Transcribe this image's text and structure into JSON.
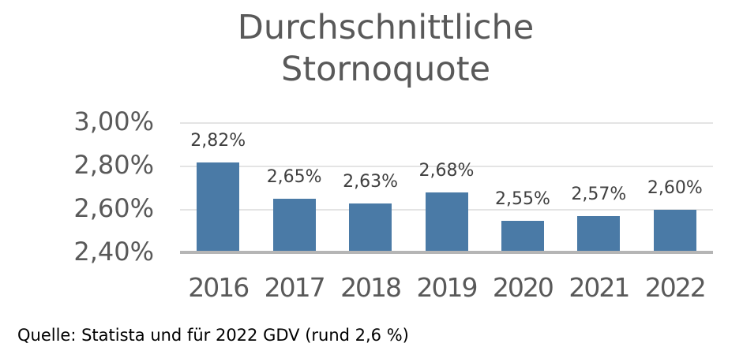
{
  "title": {
    "line1": "Durchschnittliche",
    "line2": "Stornoquote"
  },
  "source": {
    "text": "Quelle: Statista und für 2022 GDV (rund 2,6 %)"
  },
  "colors": {
    "bar": "#4a7aa6",
    "gridline": "#e4e4e4",
    "axis_line": "#b5b5b5",
    "title_text": "#595959",
    "tick_text": "#595959",
    "value_label_text": "#404040",
    "source_text": "#000000",
    "background": "#ffffff"
  },
  "chart_data": {
    "type": "bar",
    "title": "Durchschnittliche Stornoquote",
    "categories": [
      "2016",
      "2017",
      "2018",
      "2019",
      "2020",
      "2021",
      "2022"
    ],
    "values": [
      2.82,
      2.65,
      2.63,
      2.68,
      2.55,
      2.57,
      2.6
    ],
    "value_labels": [
      "2,82%",
      "2,65%",
      "2,63%",
      "2,68%",
      "2,55%",
      "2,57%",
      "2,60%"
    ],
    "y_ticks": [
      "3,00%",
      "2,80%",
      "2,60%",
      "2,40%"
    ],
    "y_tick_values": [
      3.0,
      2.8,
      2.6,
      2.4
    ],
    "ylim": [
      2.4,
      3.0
    ],
    "xlabel": "",
    "ylabel": "",
    "grid": "horizontal",
    "legend": "none",
    "decimal_format": "german-comma"
  }
}
